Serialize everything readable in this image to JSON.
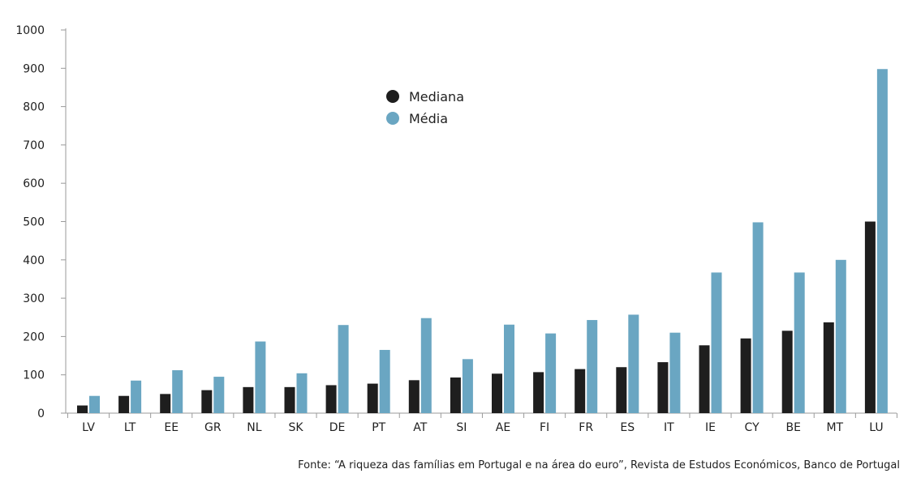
{
  "chart_data": {
    "type": "bar",
    "categories": [
      "LV",
      "LT",
      "EE",
      "GR",
      "NL",
      "SK",
      "DE",
      "PT",
      "AT",
      "SI",
      "AE",
      "FI",
      "FR",
      "ES",
      "IT",
      "IE",
      "CY",
      "BE",
      "MT",
      "LU"
    ],
    "series": [
      {
        "name": "Mediana",
        "color": "#1e1e1e",
        "values": [
          20,
          45,
          50,
          60,
          68,
          68,
          73,
          77,
          86,
          93,
          103,
          107,
          115,
          120,
          133,
          177,
          195,
          215,
          237,
          500
        ]
      },
      {
        "name": "Média",
        "color": "#6aa6c2",
        "values": [
          45,
          85,
          112,
          95,
          187,
          104,
          230,
          165,
          248,
          141,
          231,
          208,
          243,
          257,
          210,
          367,
          498,
          367,
          400,
          898
        ]
      }
    ],
    "ylim": [
      0,
      1000
    ],
    "yticks": [
      "0",
      "100",
      "200",
      "300",
      "400",
      "500",
      "600",
      "700",
      "800",
      "900",
      "1000"
    ],
    "grid": false,
    "legend_position": "top-center"
  },
  "source": "Fonte: “A riqueza das famílias em Portugal e na área do euro”, Revista de Estudos Económicos, Banco de Portugal"
}
